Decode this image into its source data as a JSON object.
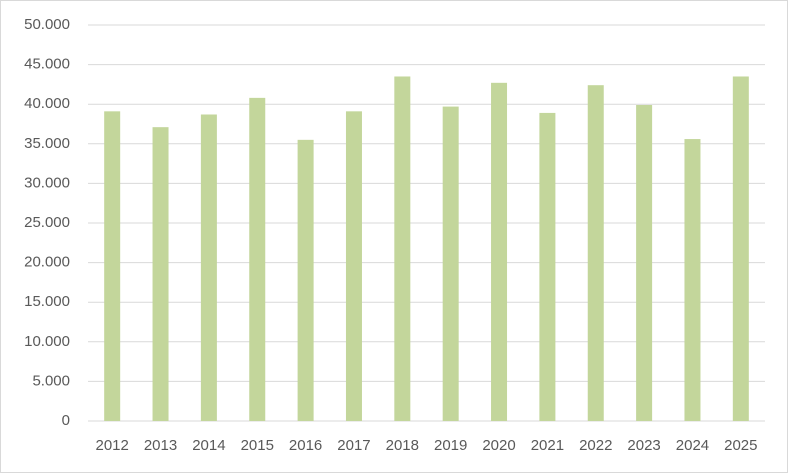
{
  "chart_data": {
    "type": "bar",
    "categories": [
      "2012",
      "2013",
      "2014",
      "2015",
      "2016",
      "2017",
      "2018",
      "2019",
      "2020",
      "2021",
      "2022",
      "2023",
      "2024",
      "2025"
    ],
    "values": [
      39100,
      37100,
      38700,
      40800,
      35500,
      39100,
      43500,
      39700,
      42700,
      38900,
      42400,
      39900,
      35600,
      43500
    ],
    "color": "#c3d69b",
    "ylim": [
      0,
      50000
    ],
    "yticks": [
      0,
      {
        "value": 5000,
        "label": "5.000"
      },
      {
        "value": 10000,
        "label": "10.000"
      },
      {
        "value": 15000,
        "label": "15.000"
      },
      {
        "value": 20000,
        "label": "20.000"
      },
      {
        "value": 25000,
        "label": "25.000"
      },
      {
        "value": 30000,
        "label": "30.000"
      },
      {
        "value": 35000,
        "label": "35.000"
      },
      {
        "value": 40000,
        "label": "40.000"
      },
      {
        "value": 45000,
        "label": "45.000"
      },
      {
        "value": 50000,
        "label": "50.000"
      }
    ],
    "grid": true
  }
}
